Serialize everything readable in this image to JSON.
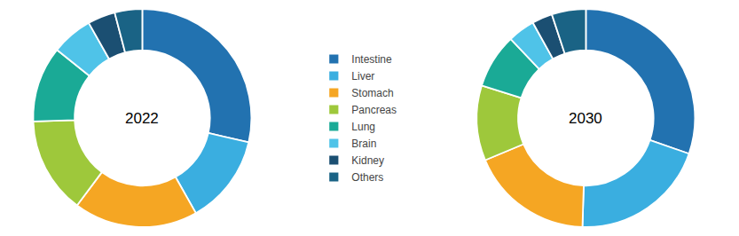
{
  "chart_data": [
    {
      "type": "pie",
      "annotations": [
        "2022"
      ],
      "categories": [
        "Intestine",
        "Liver",
        "Stomach",
        "Pancreas",
        "Lung",
        "Brain",
        "Kidney",
        "Others"
      ],
      "values": [
        28,
        13,
        18,
        14,
        11,
        6,
        4,
        4
      ],
      "colors": [
        "#2272b0",
        "#3aaee0",
        "#f5a623",
        "#9ec83b",
        "#1aaa96",
        "#4fc3e8",
        "#1b4f72",
        "#1a6385"
      ],
      "legend": "center"
    },
    {
      "type": "pie",
      "annotations": [
        "2030"
      ],
      "categories": [
        "Intestine",
        "Liver",
        "Stomach",
        "Pancreas",
        "Lung",
        "Brain",
        "Kidney",
        "Others"
      ],
      "values": [
        30,
        20,
        18,
        11,
        8,
        4,
        3,
        5
      ],
      "colors": [
        "#2272b0",
        "#3aaee0",
        "#f5a623",
        "#9ec83b",
        "#1aaa96",
        "#4fc3e8",
        "#1b4f72",
        "#1a6385"
      ],
      "legend": "center"
    }
  ]
}
